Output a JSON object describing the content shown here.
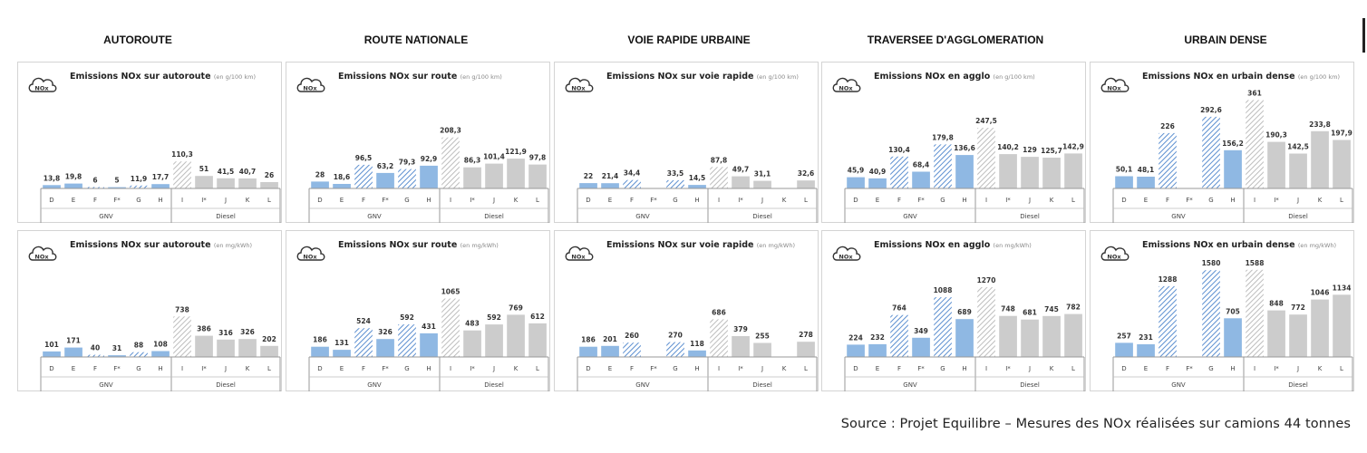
{
  "columns": [
    "AUTOROUTE",
    "ROUTE NATIONALE",
    "VOIE RAPIDE URBAINE",
    "TRAVERSEE D'AGGLOMERATION",
    "URBAIN DENSE"
  ],
  "source": "Source : Projet Equilibre – Mesures des NOx réalisées sur camions 44 tonnes",
  "icon_label": "NOx",
  "colors": {
    "gnv": "#8fb8e3",
    "diesel": "#cccccc",
    "hatch_gnv": "#5c8fd0",
    "hatch_diesel": "#bdbdbd"
  },
  "categories": [
    "D",
    "E",
    "F",
    "F*",
    "G",
    "H",
    "I",
    "I*",
    "J",
    "K",
    "L"
  ],
  "groups": [
    {
      "name": "GNV",
      "categories": [
        "D",
        "E",
        "F",
        "F*",
        "G",
        "H"
      ]
    },
    {
      "name": "Diesel",
      "categories": [
        "I",
        "I*",
        "J",
        "K",
        "L"
      ]
    }
  ],
  "hatched_categories": [
    "F",
    "G",
    "I"
  ],
  "chart_data": [
    {
      "type": "bar",
      "title": "Emissions NOx sur autoroute",
      "unit": "(en g/100 km)",
      "labels": [
        "13,8",
        "19,8",
        "6",
        "5",
        "11,9",
        "17,7",
        "110,3",
        "51",
        "41,5",
        "40,7",
        "26"
      ],
      "values": [
        13.8,
        19.8,
        6,
        5,
        11.9,
        17.7,
        110.3,
        51,
        41.5,
        40.7,
        26
      ],
      "ymax": 370
    },
    {
      "type": "bar",
      "title": "Emissions NOx sur route",
      "unit": "(en g/100 km)",
      "labels": [
        "28",
        "18,6",
        "96,5",
        "63,2",
        "79,3",
        "92,9",
        "208,3",
        "86,3",
        "101,4",
        "121,9",
        "97,8"
      ],
      "values": [
        28,
        18.6,
        96.5,
        63.2,
        79.3,
        92.9,
        208.3,
        86.3,
        101.4,
        121.9,
        97.8
      ],
      "ymax": 370
    },
    {
      "type": "bar",
      "title": "Emissions NOx sur voie rapide",
      "unit": "(en g/100 km)",
      "labels": [
        "22",
        "21,4",
        "34,4",
        "",
        "33,5",
        "14,5",
        "87,8",
        "49,7",
        "31,1",
        "",
        "32,6"
      ],
      "values": [
        22,
        21.4,
        34.4,
        0,
        33.5,
        14.5,
        87.8,
        49.7,
        31.1,
        0,
        32.6
      ],
      "ymax": 370
    },
    {
      "type": "bar",
      "title": "Emissions NOx en agglo",
      "unit": "(en g/100 km)",
      "labels": [
        "45,9",
        "40,9",
        "130,4",
        "68,4",
        "179,8",
        "136,6",
        "247,5",
        "140,2",
        "129",
        "125,7",
        "142,9"
      ],
      "values": [
        45.9,
        40.9,
        130.4,
        68.4,
        179.8,
        136.6,
        247.5,
        140.2,
        129,
        125.7,
        142.9
      ],
      "ymax": 370
    },
    {
      "type": "bar",
      "title": "Emissions NOx en urbain dense",
      "unit": "(en g/100 km)",
      "labels": [
        "50,1",
        "48,1",
        "226",
        "",
        "292,6",
        "156,2",
        "361",
        "190,3",
        "142,5",
        "233,8",
        "197,9"
      ],
      "values": [
        50.1,
        48.1,
        226,
        0,
        292.6,
        156.2,
        361,
        190.3,
        142.5,
        233.8,
        197.9
      ],
      "ymax": 370
    },
    {
      "type": "bar",
      "title": "Emissions NOx sur autoroute",
      "unit": "(en mg/kWh)",
      "labels": [
        "101",
        "171",
        "40",
        "31",
        "88",
        "108",
        "738",
        "386",
        "316",
        "326",
        "202"
      ],
      "values": [
        101,
        171,
        40,
        31,
        88,
        108,
        738,
        386,
        316,
        326,
        202
      ],
      "ymax": 1650
    },
    {
      "type": "bar",
      "title": "Emissions NOx sur route",
      "unit": "(en mg/kWh)",
      "labels": [
        "186",
        "131",
        "524",
        "326",
        "592",
        "431",
        "1065",
        "483",
        "592",
        "769",
        "612"
      ],
      "values": [
        186,
        131,
        524,
        326,
        592,
        431,
        1065,
        483,
        592,
        769,
        612
      ],
      "ymax": 1650
    },
    {
      "type": "bar",
      "title": "Emissions NOx sur voie rapide",
      "unit": "(en mg/kWh)",
      "labels": [
        "186",
        "201",
        "260",
        "",
        "270",
        "118",
        "686",
        "379",
        "255",
        "",
        "278"
      ],
      "values": [
        186,
        201,
        260,
        0,
        270,
        118,
        686,
        379,
        255,
        0,
        278
      ],
      "ymax": 1650
    },
    {
      "type": "bar",
      "title": "Emissions NOx en agglo",
      "unit": "(en mg/kWh)",
      "labels": [
        "224",
        "232",
        "764",
        "349",
        "1088",
        "689",
        "1270",
        "748",
        "681",
        "745",
        "782"
      ],
      "values": [
        224,
        232,
        764,
        349,
        1088,
        689,
        1270,
        748,
        681,
        745,
        782
      ],
      "ymax": 1650
    },
    {
      "type": "bar",
      "title": "Emissions NOx en urbain dense",
      "unit": "(en mg/kWh)",
      "labels": [
        "257",
        "231",
        "1288",
        "",
        "1580",
        "705",
        "1588",
        "848",
        "772",
        "1046",
        "1134"
      ],
      "values": [
        257,
        231,
        1288,
        0,
        1580,
        705,
        1588,
        848,
        772,
        1046,
        1134
      ],
      "ymax": 1650
    }
  ]
}
